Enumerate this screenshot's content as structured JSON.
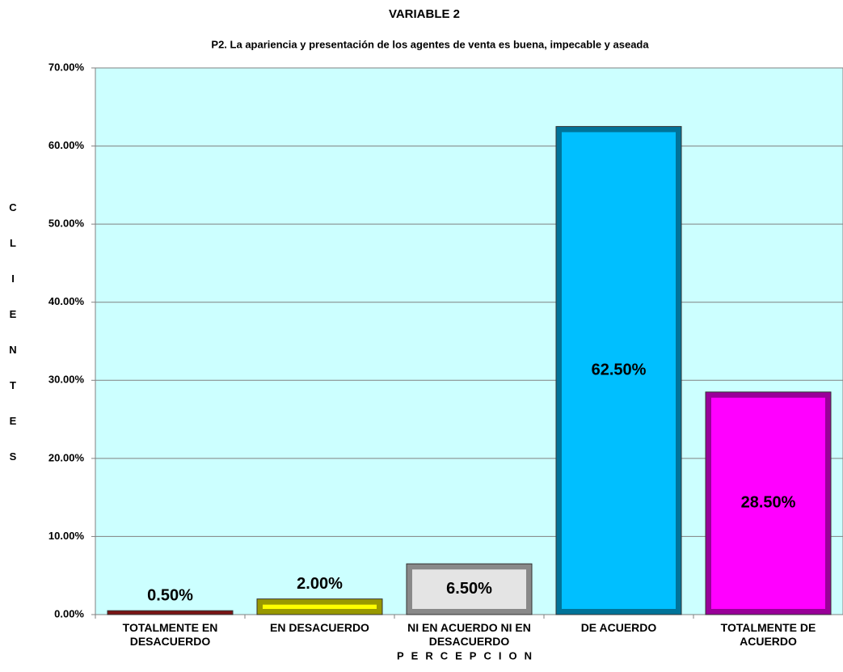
{
  "chart_data": {
    "type": "bar",
    "title": "VARIABLE 2",
    "subtitle": "P2. La apariencia y presentación de los agentes de venta es buena, impecable y aseada",
    "x_label": "PERCEPCION",
    "y_label": "CLIENTES",
    "categories": [
      "TOTALMENTE EN DESACUERDO",
      "EN DESACUERDO",
      "NI EN ACUERDO NI EN DESACUERDO",
      "DE ACUERDO",
      "TOTALMENTE DE ACUERDO"
    ],
    "values": [
      0.5,
      2,
      6.5,
      62.5,
      28.5
    ],
    "value_labels": [
      "0.50%",
      "2.00%",
      "6.50%",
      "62.50%",
      "28.50%"
    ],
    "colors": [
      "#cc2222",
      "#ffff00",
      "#e4e4e4",
      "#00bfff",
      "#ff00ff"
    ],
    "ylim": [
      0,
      70
    ],
    "yticks": [
      {
        "value": 0,
        "label": "0.00%"
      },
      {
        "value": 10,
        "label": "10.00%"
      },
      {
        "value": 20,
        "label": "20.00%"
      },
      {
        "value": 30,
        "label": "30.00%"
      },
      {
        "value": 40,
        "label": "40.00%"
      },
      {
        "value": 50,
        "label": "50.00%"
      },
      {
        "value": 60,
        "label": "60.00%"
      },
      {
        "value": 70,
        "label": "70.00%"
      }
    ],
    "grid": true
  }
}
